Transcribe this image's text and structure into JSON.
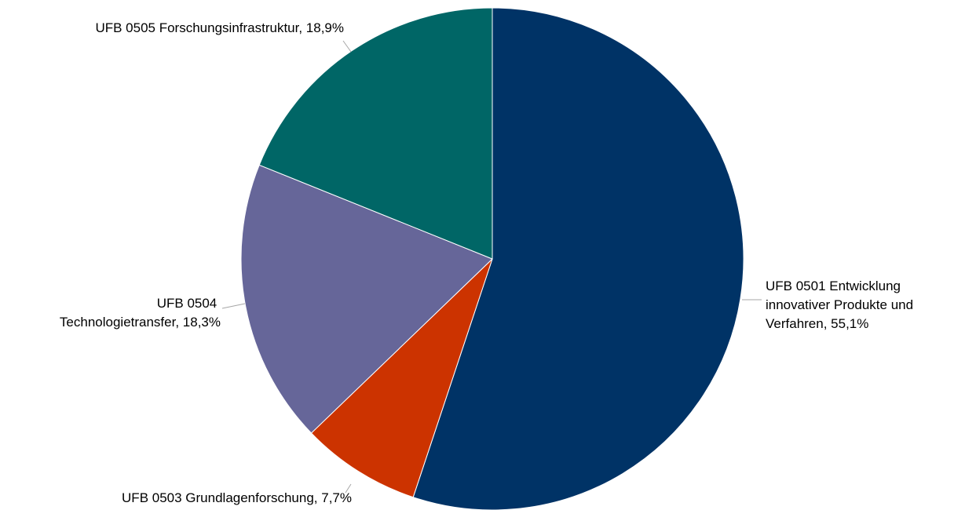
{
  "chart_data": {
    "type": "pie",
    "slices": [
      {
        "key": "ufb0501",
        "label_lines": [
          "UFB 0501 Entwicklung",
          "innovativer Produkte und",
          "Verfahren, 55,1%"
        ],
        "value": 55.1,
        "color": "#003366"
      },
      {
        "key": "ufb0503",
        "label_lines": [
          "UFB 0503 Grundlagenforschung, 7,7%"
        ],
        "value": 7.7,
        "color": "#cc3300"
      },
      {
        "key": "ufb0504",
        "label_lines": [
          "UFB 0504",
          "Technologietransfer, 18,3%"
        ],
        "value": 18.3,
        "color": "#666699"
      },
      {
        "key": "ufb0505",
        "label_lines": [
          "UFB 0505 Forschungsinfrastruktur, 18,9%"
        ],
        "value": 18.9,
        "color": "#006666"
      }
    ],
    "start_angle": "12 o'clock",
    "direction": "clockwise",
    "legend": "none",
    "data_labels": "outside with leader lines"
  }
}
